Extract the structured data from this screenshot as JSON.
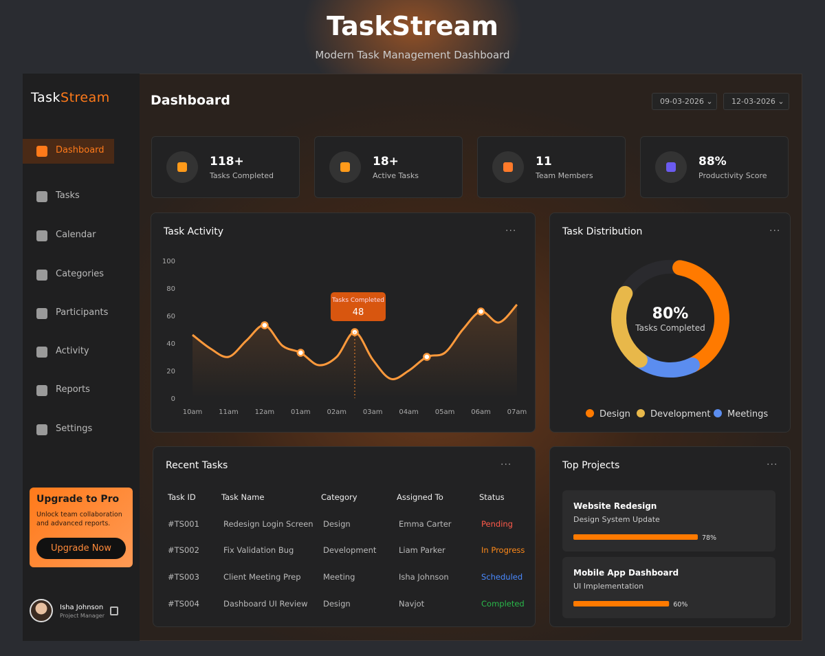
{
  "header": {
    "title": "TaskStream",
    "subtitle": "Modern Task Management Dashboard"
  },
  "sidebar": {
    "logo_a": "Task",
    "logo_b": "Stream",
    "nav": [
      "Dashboard",
      "Tasks",
      "Calendar",
      "Categories",
      "Participants",
      "Activity",
      "Reports",
      "Settings"
    ],
    "upgrade": {
      "title": "Upgrade to Pro",
      "text": "Unlock team collaboration and advanced reports.",
      "button": "Upgrade Now"
    },
    "user": {
      "name": "Isha Johnson",
      "role": "Project Manager"
    }
  },
  "main": {
    "title": "Dashboard",
    "dates": [
      "09-03-2026",
      "12-03-2026"
    ],
    "stats": [
      {
        "value": "118+",
        "label": "Tasks Completed"
      },
      {
        "value": "18+",
        "label": "Active Tasks"
      },
      {
        "value": "11",
        "label": "Team Members"
      },
      {
        "value": "88%",
        "label": "Productivity Score"
      }
    ]
  },
  "activity": {
    "title": "Task Activity",
    "chart_data": {
      "type": "line",
      "color": "#ff9a3c",
      "categories": [
        "10am",
        null,
        "11am",
        null,
        "12am",
        null,
        "01am",
        null,
        "02am",
        null,
        "03am",
        null,
        "04am",
        null,
        "05am",
        null,
        "06am",
        null,
        "07am"
      ],
      "values": [
        46,
        36,
        30,
        42,
        53,
        38,
        33,
        24,
        30,
        48,
        28,
        14,
        20,
        30,
        33,
        50,
        63,
        55,
        68
      ],
      "ylim": [
        0,
        100
      ],
      "yticks": [
        0,
        20,
        40,
        60,
        80,
        100
      ],
      "tooltip_title": "Tasks Completed"
    }
  },
  "distribution": {
    "title": "Task Distribution",
    "chart_data": {
      "type": "donut",
      "series": [
        {
          "name": "Design",
          "color": "#ff7a00",
          "value": 40
        },
        {
          "name": "Development",
          "color": "#e8b84a",
          "value": 23
        },
        {
          "name": "Meetings",
          "color": "#5b8def",
          "value": 17
        }
      ],
      "center": {
        "value": 80,
        "label": "80%"
      },
      "center_caption": "Tasks Completed"
    }
  },
  "tasks": {
    "title": "Recent Tasks",
    "columns": [
      "Task ID",
      "Task Name",
      "Category",
      "Assigned To",
      "Status"
    ],
    "rows": [
      [
        "#TS001",
        "Redesign Login Screen",
        "Design",
        "Emma Carter",
        "Pending"
      ],
      [
        "#TS002",
        "Fix Validation Bug",
        "Development",
        "Liam Parker",
        "In Progress"
      ],
      [
        "#TS003",
        "Client Meeting Prep",
        "Meeting",
        "Isha Johnson",
        "Scheduled"
      ],
      [
        "#TS004",
        "Dashboard UI Review",
        "Design",
        "Navjot",
        "Completed"
      ]
    ]
  },
  "projects": {
    "title": "Top Projects",
    "items": [
      {
        "name": "Website Redesign",
        "subtitle": "Design System Update",
        "progress": 78,
        "progress_label": "78%"
      },
      {
        "name": "Mobile App Dashboard",
        "subtitle": "UI Implementation",
        "progress": 60,
        "progress_label": "60%"
      }
    ]
  }
}
